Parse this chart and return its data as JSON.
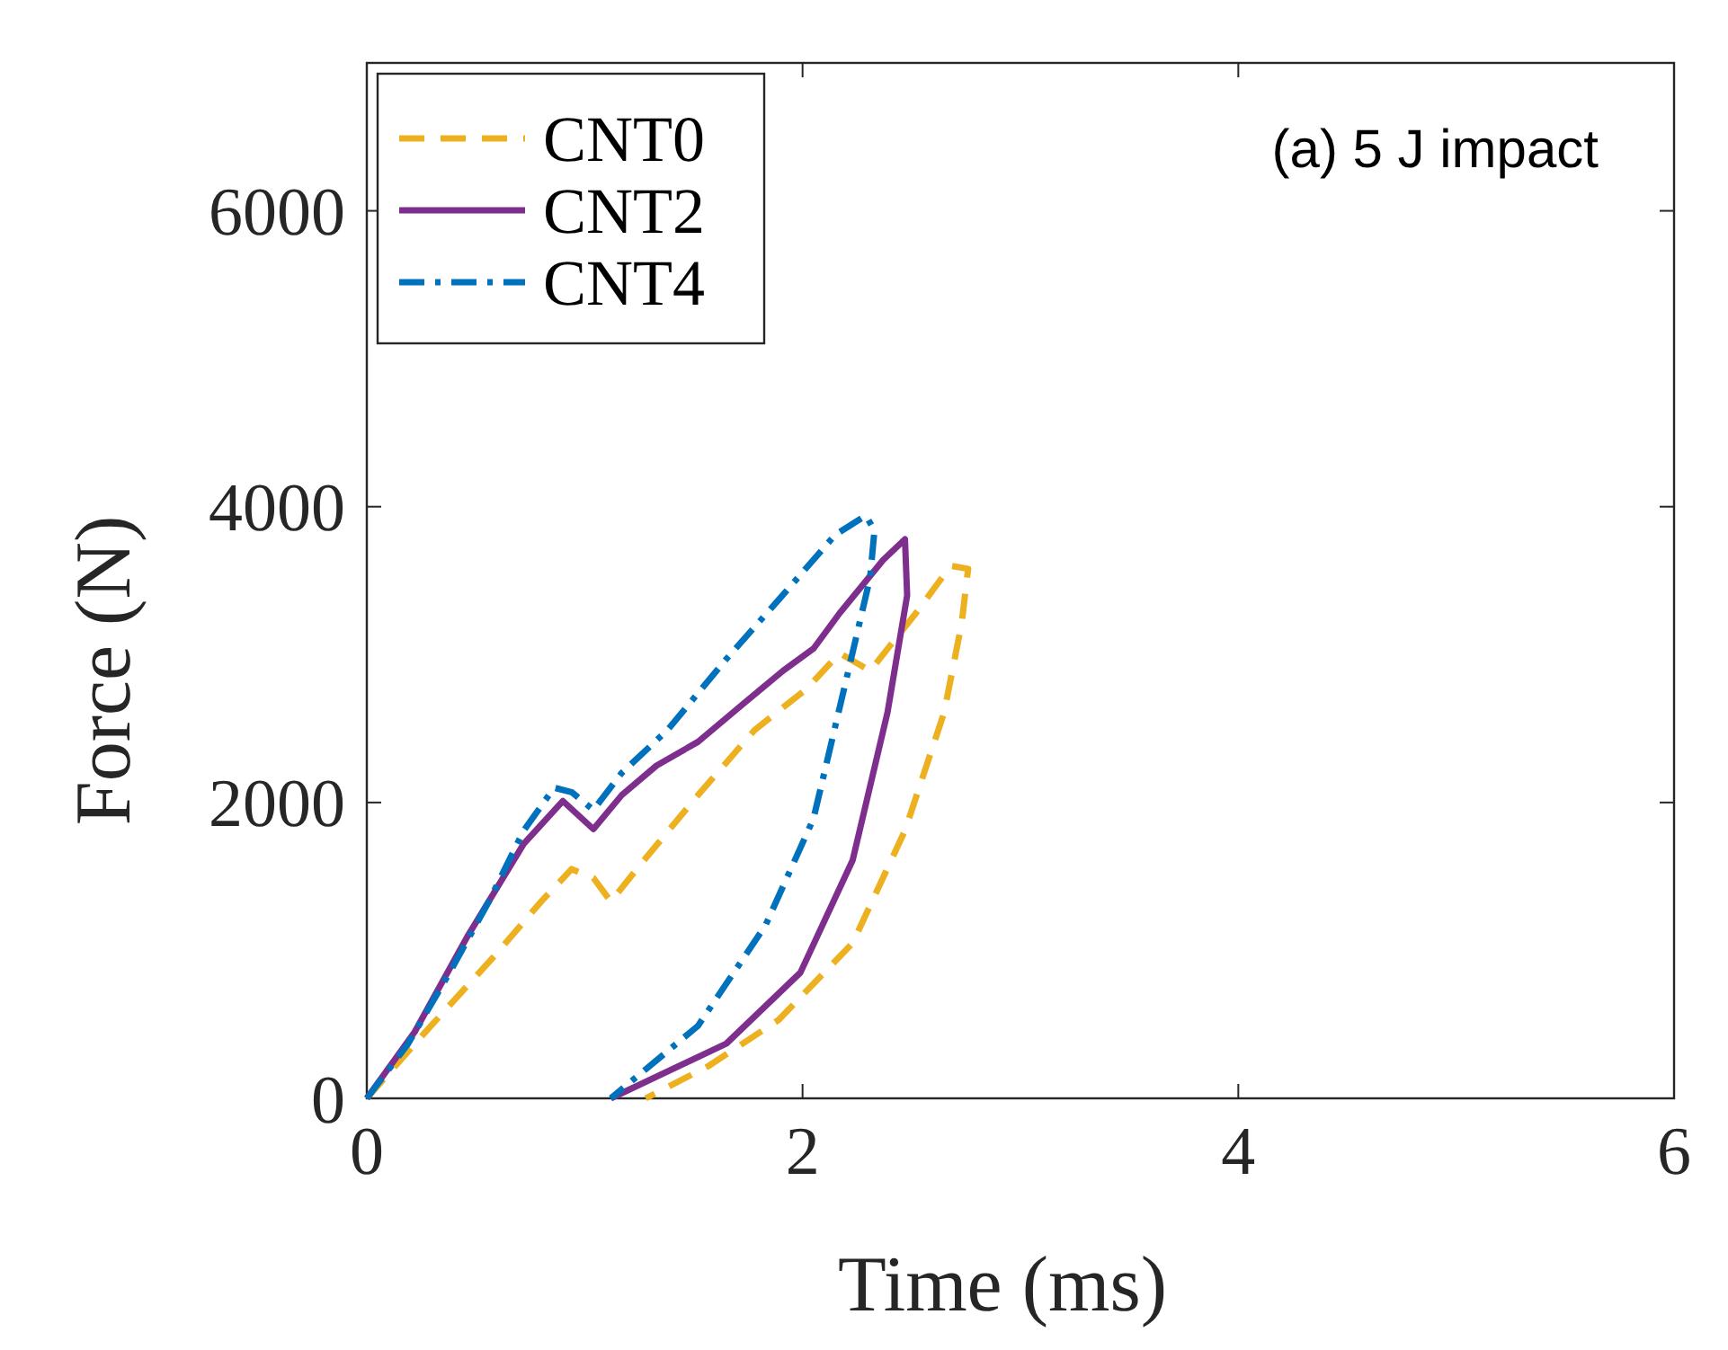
{
  "chart_data": {
    "type": "line",
    "xlabel": "Time (ms)",
    "ylabel": "Force (N)",
    "annotations": [
      "(a) 5 J impact"
    ],
    "xlim": [
      0,
      6
    ],
    "ylim": [
      0,
      7000
    ],
    "xticks": [
      0,
      2,
      4,
      6
    ],
    "yticks": [
      0,
      2000,
      4000,
      6000
    ],
    "grid": false,
    "legend": "top left",
    "marker": "none",
    "series": [
      {
        "name": "CNT0",
        "color": "#edb120",
        "line_style": "dashed",
        "x": [
          0,
          0.27,
          0.59,
          0.8,
          0.94,
          1.04,
          1.12,
          1.25,
          1.52,
          1.78,
          2.02,
          2.17,
          2.31,
          2.52,
          2.68,
          2.76,
          2.73,
          2.65,
          2.47,
          2.23,
          1.89,
          1.57,
          1.28
        ],
        "values": [
          0,
          450,
          970,
          1330,
          1550,
          1490,
          1330,
          1570,
          2050,
          2490,
          2770,
          3010,
          2890,
          3280,
          3600,
          3580,
          3210,
          2610,
          1810,
          1050,
          530,
          220,
          0
        ]
      },
      {
        "name": "CNT2",
        "color": "#7e2f8e",
        "line_style": "solid",
        "x": [
          0,
          0.22,
          0.46,
          0.72,
          0.9,
          1.04,
          1.17,
          1.33,
          1.52,
          1.73,
          1.91,
          2.05,
          2.17,
          2.37,
          2.47,
          2.48,
          2.39,
          2.23,
          1.99,
          1.65,
          1.12
        ],
        "values": [
          0,
          450,
          1090,
          1720,
          2010,
          1820,
          2050,
          2250,
          2410,
          2670,
          2890,
          3040,
          3280,
          3640,
          3780,
          3400,
          2610,
          1610,
          850,
          370,
          0
        ]
      },
      {
        "name": "CNT4",
        "color": "#0072bd",
        "line_style": "dashdot",
        "x": [
          0,
          0.19,
          0.38,
          0.56,
          0.72,
          0.86,
          0.94,
          1.04,
          1.17,
          1.38,
          1.65,
          1.89,
          2.15,
          2.29,
          2.33,
          2.31,
          2.21,
          2.05,
          1.83,
          1.52,
          1.12
        ],
        "values": [
          0,
          370,
          850,
          1330,
          1810,
          2100,
          2070,
          1950,
          2200,
          2490,
          2970,
          3370,
          3810,
          3940,
          3840,
          3520,
          2890,
          1890,
          1170,
          490,
          0
        ]
      }
    ]
  }
}
